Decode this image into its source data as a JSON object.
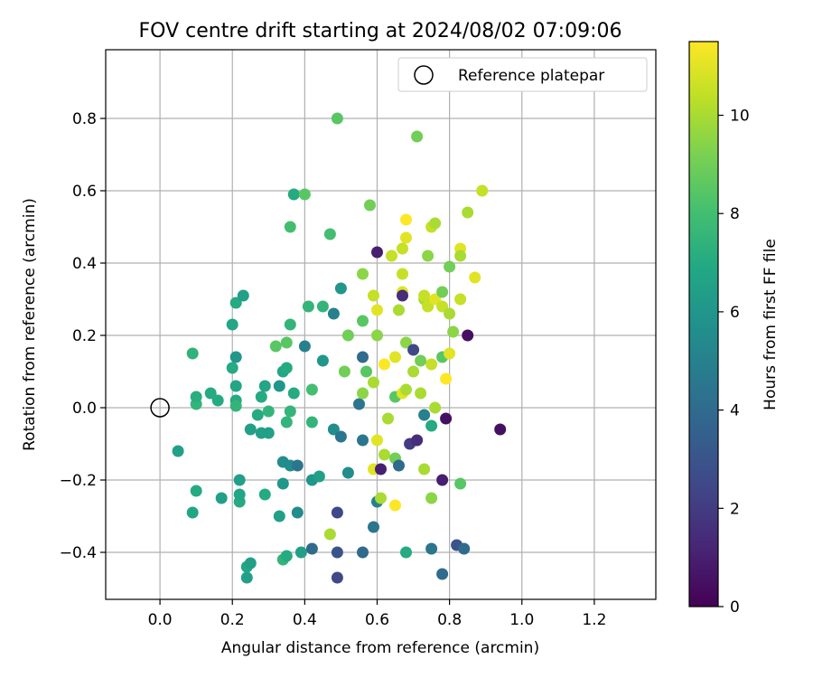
{
  "chart_data": {
    "type": "scatter",
    "title": "FOV centre drift starting at 2024/08/02 07:09:06",
    "xlabel": "Angular distance from reference (arcmin)",
    "ylabel": "Rotation from reference (arcmin)",
    "xlim": [
      -0.15,
      1.37
    ],
    "ylim": [
      -0.53,
      0.99
    ],
    "xticks": [
      "0.0",
      "0.2",
      "0.4",
      "0.6",
      "0.8",
      "1.0",
      "1.2"
    ],
    "yticks": [
      "−0.4",
      "−0.2",
      "0.0",
      "0.2",
      "0.4",
      "0.6",
      "0.8"
    ],
    "grid": true,
    "legend": {
      "location": "top-right",
      "label": "Reference platepar"
    },
    "reference_point": {
      "x": 0.0,
      "y": 0.0
    },
    "colorbar": {
      "label": "Hours from first FF file",
      "range": [
        0,
        11.5
      ],
      "ticks": [
        "0",
        "2",
        "4",
        "6",
        "8",
        "10"
      ],
      "colormap": "viridis"
    },
    "points": [
      [
        0.05,
        -0.12,
        6.5
      ],
      [
        0.09,
        0.15,
        7.4
      ],
      [
        0.09,
        -0.29,
        6.8
      ],
      [
        0.1,
        0.01,
        7.5
      ],
      [
        0.1,
        0.03,
        7.2
      ],
      [
        0.1,
        -0.23,
        7.0
      ],
      [
        0.14,
        0.04,
        7.0
      ],
      [
        0.16,
        0.02,
        7.0
      ],
      [
        0.17,
        -0.25,
        6.5
      ],
      [
        0.2,
        0.23,
        6.8
      ],
      [
        0.2,
        0.11,
        7.0
      ],
      [
        0.21,
        0.29,
        7.0
      ],
      [
        0.21,
        0.14,
        6.0
      ],
      [
        0.21,
        0.06,
        6.8
      ],
      [
        0.21,
        0.02,
        7.0
      ],
      [
        0.21,
        0.005,
        7.5
      ],
      [
        0.22,
        -0.26,
        7.0
      ],
      [
        0.22,
        -0.24,
        6.8
      ],
      [
        0.22,
        -0.2,
        6.5
      ],
      [
        0.23,
        0.31,
        6.5
      ],
      [
        0.24,
        -0.44,
        6.8
      ],
      [
        0.24,
        -0.47,
        6.5
      ],
      [
        0.25,
        -0.43,
        6.5
      ],
      [
        0.25,
        -0.06,
        6.5
      ],
      [
        0.27,
        -0.02,
        7.0
      ],
      [
        0.28,
        0.03,
        7.0
      ],
      [
        0.28,
        -0.07,
        6.5
      ],
      [
        0.29,
        0.06,
        6.8
      ],
      [
        0.29,
        -0.24,
        7.0
      ],
      [
        0.3,
        -0.07,
        6.5
      ],
      [
        0.3,
        -0.01,
        7.5
      ],
      [
        0.32,
        0.17,
        8.5
      ],
      [
        0.33,
        -0.3,
        6.5
      ],
      [
        0.33,
        0.06,
        6.0
      ],
      [
        0.34,
        -0.15,
        5.5
      ],
      [
        0.34,
        -0.42,
        7.5
      ],
      [
        0.34,
        -0.21,
        6.0
      ],
      [
        0.34,
        0.1,
        6.8
      ],
      [
        0.35,
        -0.41,
        7.0
      ],
      [
        0.35,
        -0.04,
        7.5
      ],
      [
        0.35,
        0.18,
        8.5
      ],
      [
        0.35,
        0.11,
        7.0
      ],
      [
        0.36,
        -0.16,
        5.5
      ],
      [
        0.36,
        -0.01,
        7.5
      ],
      [
        0.36,
        0.23,
        7.5
      ],
      [
        0.36,
        0.5,
        8.0
      ],
      [
        0.37,
        0.04,
        7.0
      ],
      [
        0.37,
        0.59,
        7.0
      ],
      [
        0.38,
        -0.16,
        4.5
      ],
      [
        0.38,
        -0.29,
        5.5
      ],
      [
        0.39,
        -0.4,
        6.5
      ],
      [
        0.4,
        0.59,
        8.5
      ],
      [
        0.4,
        0.17,
        5.0
      ],
      [
        0.41,
        0.28,
        7.5
      ],
      [
        0.42,
        0.05,
        8.0
      ],
      [
        0.42,
        -0.04,
        7.5
      ],
      [
        0.42,
        -0.2,
        6.0
      ],
      [
        0.42,
        -0.39,
        4.0
      ],
      [
        0.44,
        -0.19,
        6.5
      ],
      [
        0.45,
        0.13,
        6.0
      ],
      [
        0.45,
        0.28,
        7.5
      ],
      [
        0.47,
        0.48,
        8.0
      ],
      [
        0.47,
        -0.35,
        10.0
      ],
      [
        0.48,
        -0.06,
        5.5
      ],
      [
        0.48,
        0.26,
        5.0
      ],
      [
        0.49,
        -0.29,
        2.5
      ],
      [
        0.49,
        -0.47,
        2.5
      ],
      [
        0.49,
        0.8,
        8.5
      ],
      [
        0.49,
        -0.4,
        3.0
      ],
      [
        0.5,
        0.33,
        6.0
      ],
      [
        0.5,
        -0.08,
        4.5
      ],
      [
        0.51,
        0.1,
        9.0
      ],
      [
        0.52,
        0.2,
        9.0
      ],
      [
        0.52,
        -0.18,
        5.5
      ],
      [
        0.55,
        0.01,
        4.5
      ],
      [
        0.56,
        0.37,
        9.5
      ],
      [
        0.56,
        0.24,
        8.5
      ],
      [
        0.56,
        0.04,
        9.5
      ],
      [
        0.56,
        0.14,
        4.0
      ],
      [
        0.56,
        -0.09,
        4.5
      ],
      [
        0.56,
        -0.4,
        4.0
      ],
      [
        0.57,
        0.1,
        8.5
      ],
      [
        0.58,
        0.56,
        9.0
      ],
      [
        0.59,
        -0.33,
        4.5
      ],
      [
        0.59,
        0.31,
        10.5
      ],
      [
        0.59,
        0.07,
        10.0
      ],
      [
        0.59,
        -0.17,
        11.0
      ],
      [
        0.6,
        0.43,
        1.0
      ],
      [
        0.6,
        0.27,
        11.0
      ],
      [
        0.6,
        0.2,
        9.5
      ],
      [
        0.6,
        -0.09,
        11.0
      ],
      [
        0.6,
        -0.26,
        5.0
      ],
      [
        0.61,
        -0.25,
        10.0
      ],
      [
        0.61,
        -0.17,
        1.0
      ],
      [
        0.62,
        -0.13,
        10.0
      ],
      [
        0.62,
        0.12,
        11.5
      ],
      [
        0.63,
        -0.03,
        10.0
      ],
      [
        0.64,
        0.42,
        10.5
      ],
      [
        0.65,
        -0.14,
        9.0
      ],
      [
        0.65,
        0.03,
        8.5
      ],
      [
        0.65,
        0.14,
        11.0
      ],
      [
        0.65,
        -0.27,
        11.5
      ],
      [
        0.66,
        -0.16,
        4.0
      ],
      [
        0.66,
        0.27,
        10.0
      ],
      [
        0.67,
        0.04,
        11.0
      ],
      [
        0.67,
        0.37,
        10.5
      ],
      [
        0.67,
        0.32,
        11.0
      ],
      [
        0.67,
        0.31,
        1.5
      ],
      [
        0.67,
        0.44,
        10.5
      ],
      [
        0.68,
        0.47,
        11.0
      ],
      [
        0.68,
        0.18,
        9.5
      ],
      [
        0.68,
        0.52,
        11.5
      ],
      [
        0.68,
        0.05,
        10.0
      ],
      [
        0.68,
        -0.4,
        7.0
      ],
      [
        0.69,
        -0.1,
        2.0
      ],
      [
        0.7,
        0.16,
        2.5
      ],
      [
        0.7,
        0.1,
        10.0
      ],
      [
        0.71,
        0.75,
        9.0
      ],
      [
        0.71,
        -0.09,
        1.5
      ],
      [
        0.72,
        0.04,
        10.0
      ],
      [
        0.72,
        0.13,
        9.0
      ],
      [
        0.73,
        0.3,
        10.0
      ],
      [
        0.73,
        0.31,
        10.5
      ],
      [
        0.73,
        -0.02,
        5.0
      ],
      [
        0.73,
        -0.17,
        10.0
      ],
      [
        0.74,
        0.42,
        9.5
      ],
      [
        0.74,
        0.28,
        10.5
      ],
      [
        0.75,
        0.5,
        10.5
      ],
      [
        0.75,
        0.12,
        10.5
      ],
      [
        0.75,
        -0.05,
        7.0
      ],
      [
        0.75,
        -0.25,
        9.5
      ],
      [
        0.75,
        -0.39,
        4.5
      ],
      [
        0.76,
        0.3,
        11.0
      ],
      [
        0.76,
        0.51,
        10.0
      ],
      [
        0.76,
        0.0,
        10.0
      ],
      [
        0.78,
        0.32,
        9.0
      ],
      [
        0.78,
        0.28,
        10.5
      ],
      [
        0.78,
        -0.2,
        1.0
      ],
      [
        0.78,
        -0.46,
        4.0
      ],
      [
        0.78,
        0.14,
        8.5
      ],
      [
        0.79,
        0.08,
        11.5
      ],
      [
        0.79,
        -0.03,
        0.5
      ],
      [
        0.8,
        0.26,
        10.0
      ],
      [
        0.8,
        0.15,
        11.0
      ],
      [
        0.8,
        0.39,
        9.0
      ],
      [
        0.81,
        0.21,
        9.5
      ],
      [
        0.82,
        -0.38,
        3.0
      ],
      [
        0.83,
        0.44,
        11.0
      ],
      [
        0.83,
        0.3,
        10.5
      ],
      [
        0.83,
        0.42,
        10.0
      ],
      [
        0.83,
        -0.21,
        8.5
      ],
      [
        0.84,
        -0.39,
        4.0
      ],
      [
        0.85,
        0.2,
        0.5
      ],
      [
        0.85,
        0.54,
        10.0
      ],
      [
        0.87,
        0.36,
        11.0
      ],
      [
        0.89,
        0.6,
        10.5
      ],
      [
        0.94,
        -0.06,
        0.5
      ]
    ]
  }
}
